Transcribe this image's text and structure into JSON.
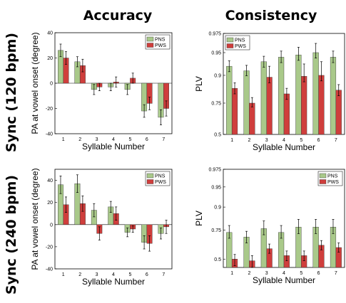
{
  "figure": {
    "col_titles": [
      "Accuracy",
      "Consistency"
    ],
    "row_titles": [
      "Sync (120 bpm)",
      "Sync (240 bpm)"
    ]
  },
  "chart_data": [
    {
      "type": "bar",
      "panel": "Sync (120 bpm) - Accuracy",
      "categories": [
        "1",
        "2",
        "3",
        "4",
        "5",
        "6",
        "7"
      ],
      "xlabel": "Syllable Number",
      "ylabel": "PA at vowel onset (degree)",
      "ylim": [
        -40,
        40
      ],
      "yticks": [
        "40",
        "20",
        "0",
        "-20",
        "-40"
      ],
      "legend": "top-right",
      "series": [
        {
          "name": "PNS",
          "color": "#a9c98a",
          "values": [
            26,
            17,
            -5,
            -3,
            -5,
            -22,
            -27
          ],
          "errors": [
            5,
            4,
            4,
            3,
            4,
            5,
            6
          ]
        },
        {
          "name": "PWS",
          "color": "#cf3e3c",
          "values": [
            20,
            14,
            -3,
            1,
            4,
            -16,
            -20
          ],
          "errors": [
            5,
            5,
            3,
            4,
            4,
            5,
            6
          ]
        }
      ]
    },
    {
      "type": "bar",
      "panel": "Sync (120 bpm) - Consistency",
      "categories": [
        "1",
        "2",
        "3",
        "4",
        "5",
        "6",
        "7"
      ],
      "xlabel": "Syllable Number",
      "ylabel": "PLV",
      "ylim": [
        0.5,
        0.975
      ],
      "yticks": [
        "0.975",
        "0.95",
        "0.9",
        "0.75",
        "0.5"
      ],
      "legend": "top-left",
      "series": [
        {
          "name": "PNS",
          "color": "#a9c98a",
          "values": [
            0.92,
            0.91,
            0.93,
            0.94,
            0.945,
            0.95,
            0.94
          ],
          "errors": [
            0.012,
            0.012,
            0.012,
            0.012,
            0.012,
            0.012,
            0.012
          ]
        },
        {
          "name": "PWS",
          "color": "#cf3e3c",
          "values": [
            0.83,
            0.75,
            0.89,
            0.8,
            0.895,
            0.9,
            0.82
          ],
          "errors": [
            0.03,
            0.03,
            0.03,
            0.03,
            0.03,
            0.03,
            0.03
          ]
        }
      ]
    },
    {
      "type": "bar",
      "panel": "Sync (240 bpm) - Accuracy",
      "categories": [
        "1",
        "2",
        "3",
        "4",
        "5",
        "6",
        "7"
      ],
      "xlabel": "Syllable Number",
      "ylabel": "PA at vowel onset (degree)",
      "ylim": [
        -40,
        50
      ],
      "yticks": [
        "40",
        "20",
        "0",
        "-20",
        "-40"
      ],
      "legend": "top-right",
      "series": [
        {
          "name": "PNS",
          "color": "#a9c98a",
          "values": [
            36,
            37,
            13,
            16,
            -7,
            -16,
            -8
          ],
          "errors": [
            8,
            8,
            6,
            5,
            4,
            6,
            5
          ]
        },
        {
          "name": "PWS",
          "color": "#cf3e3c",
          "values": [
            18,
            19,
            -8,
            10,
            -4,
            -17,
            -2
          ],
          "errors": [
            7,
            7,
            6,
            6,
            3,
            7,
            6
          ]
        }
      ]
    },
    {
      "type": "bar",
      "panel": "Sync (240 bpm) - Consistency",
      "categories": [
        "1",
        "2",
        "3",
        "4",
        "5",
        "6",
        "7"
      ],
      "xlabel": "Syllable Number",
      "ylabel": "PLV",
      "ylim": [
        0.45,
        0.975
      ],
      "yticks": [
        "0.975",
        "0.95",
        "0.9",
        "0.75",
        "0.5"
      ],
      "legend": "top-right",
      "series": [
        {
          "name": "PNS",
          "color": "#a9c98a",
          "values": [
            0.73,
            0.69,
            0.76,
            0.73,
            0.77,
            0.77,
            0.77
          ],
          "errors": [
            0.05,
            0.05,
            0.05,
            0.05,
            0.05,
            0.05,
            0.05
          ]
        },
        {
          "name": "PWS",
          "color": "#cf3e3c",
          "values": [
            0.5,
            0.49,
            0.59,
            0.53,
            0.53,
            0.62,
            0.6
          ],
          "errors": [
            0.04,
            0.04,
            0.04,
            0.04,
            0.04,
            0.04,
            0.04
          ]
        }
      ]
    }
  ]
}
